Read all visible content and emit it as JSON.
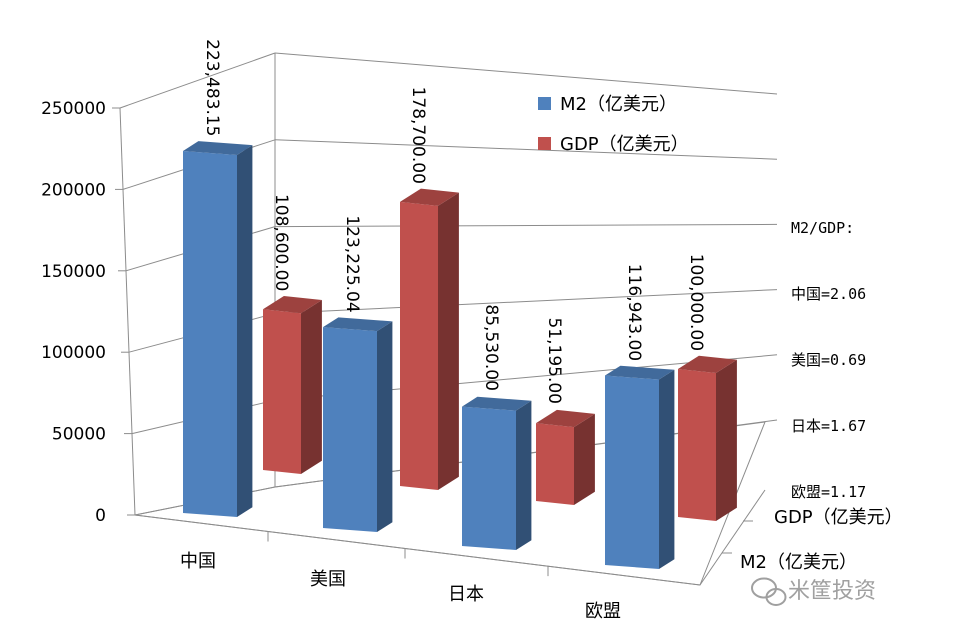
{
  "chart_data": {
    "type": "bar",
    "categories": [
      "中国",
      "美国",
      "日本",
      "欧盟"
    ],
    "series": [
      {
        "name": "M2（亿美元）",
        "values": [
          223483.15,
          123225.04,
          85530.0,
          116943.0
        ],
        "labels": [
          "223,483.15",
          "123,225.04",
          "85,530.00",
          "116,943.00"
        ],
        "color": "#4F81BD"
      },
      {
        "name": "GDP（亿美元）",
        "values": [
          108600.0,
          178700.0,
          51195.0,
          100000.0
        ],
        "labels": [
          "108,600.00",
          "178,700.00",
          "51,195.00",
          "100,000.00"
        ],
        "color": "#C0504D"
      }
    ],
    "yticks": [
      "0",
      "50000",
      "100000",
      "150000",
      "200000",
      "250000"
    ],
    "ylim": [
      0,
      250000
    ],
    "legend_position": "top-right",
    "grid": true,
    "depth_axis_labels": [
      "GDP（亿美元）",
      "M2（亿美元）"
    ]
  },
  "annotation": {
    "title": "M2/GDP:",
    "lines": [
      "中国=2.06",
      "美国=0.69",
      "日本=1.67",
      "欧盟=1.17"
    ]
  },
  "watermark": "米筐投资"
}
